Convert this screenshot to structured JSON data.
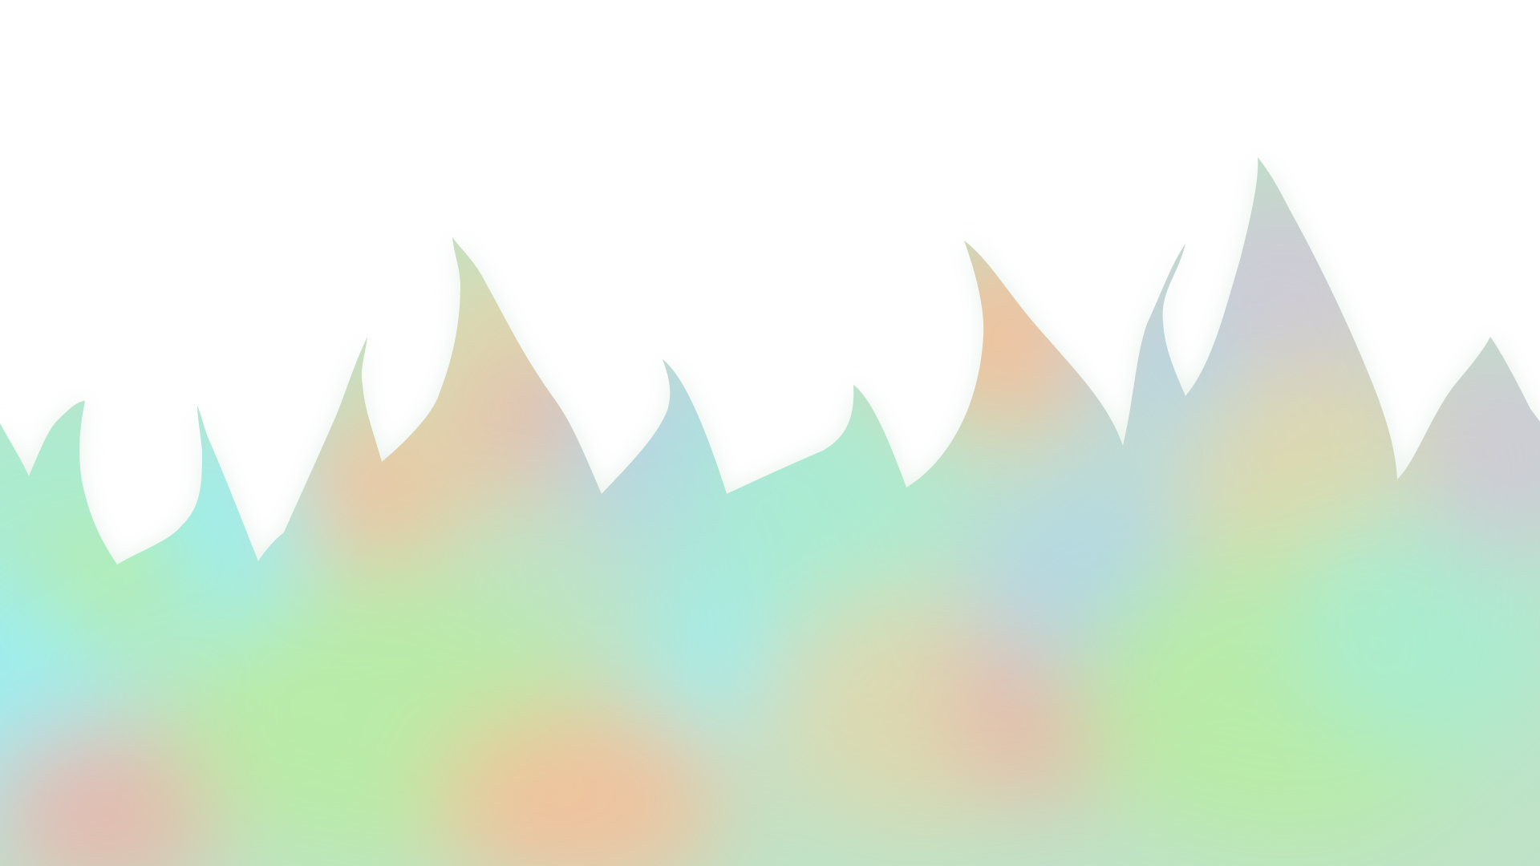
{
  "scene": {
    "background_color": "#ffffff",
    "style": "blurred pastel multicolor flame silhouette",
    "palette": {
      "mint": "#a8ecd2",
      "cyan": "#9aeef4",
      "lime": "#b8eca4",
      "peach": "#f5bf9a",
      "salmon": "#e9b6ab",
      "sand": "#dfd8ad",
      "sky": "#b3d6e8",
      "lavender": "#cfc8d6"
    }
  }
}
